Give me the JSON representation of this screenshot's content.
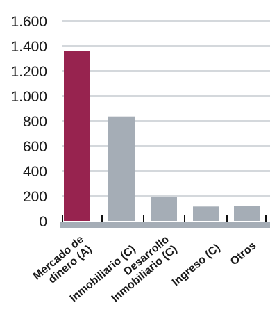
{
  "chart_data": {
    "type": "bar",
    "categories": [
      [
        "Mercado de",
        "dinero (A)"
      ],
      [
        "Inmobiliario (C)"
      ],
      [
        "Desarrollo",
        "Inmobiliario (C)"
      ],
      [
        "Ingreso (C)"
      ],
      [
        "Otros"
      ]
    ],
    "values": [
      1360,
      835,
      190,
      115,
      120
    ],
    "ylim": [
      0,
      1600
    ],
    "yticks": [
      0,
      200,
      400,
      600,
      800,
      1000,
      1200,
      1400,
      1600
    ],
    "ytick_labels": [
      "0",
      "200",
      "400",
      "600",
      "800",
      "1.000",
      "1.200",
      "1.400",
      "1.600"
    ],
    "grid": true,
    "colors": {
      "highlight": "#97234f",
      "bar": "#a5adb6",
      "axis": "#a5adb6",
      "grid": "#a9b0b8"
    }
  }
}
